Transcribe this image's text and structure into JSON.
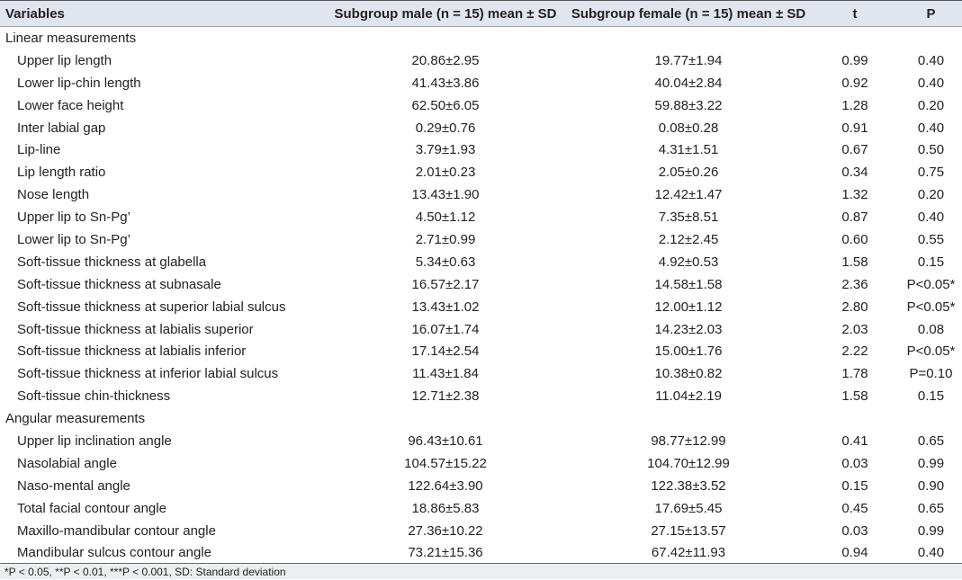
{
  "header": [
    "Variables",
    "Subgroup male (n = 15) mean ± SD",
    "Subgroup female (n = 15) mean ± SD",
    "t",
    "P"
  ],
  "sections": [
    {
      "title": "Linear measurements",
      "rows": [
        [
          "Upper lip length",
          "20.86±2.95",
          "19.77±1.94",
          "0.99",
          "0.40"
        ],
        [
          "Lower lip-chin length",
          "41.43±3.86",
          "40.04±2.84",
          "0.92",
          "0.40"
        ],
        [
          "Lower face height",
          "62.50±6.05",
          "59.88±3.22",
          "1.28",
          "0.20"
        ],
        [
          "Inter labial gap",
          "0.29±0.76",
          "0.08±0.28",
          "0.91",
          "0.40"
        ],
        [
          "Lip-line",
          "3.79±1.93",
          "4.31±1.51",
          "0.67",
          "0.50"
        ],
        [
          "Lip length ratio",
          "2.01±0.23",
          "2.05±0.26",
          "0.34",
          "0.75"
        ],
        [
          "Nose length",
          "13.43±1.90",
          "12.42±1.47",
          "1.32",
          "0.20"
        ],
        [
          "Upper lip to Sn-Pg’",
          "4.50±1.12",
          "7.35±8.51",
          "0.87",
          "0.40"
        ],
        [
          "Lower lip to Sn-Pg’",
          "2.71±0.99",
          "2.12±2.45",
          "0.60",
          "0.55"
        ],
        [
          "Soft-tissue thickness at glabella",
          "5.34±0.63",
          "4.92±0.53",
          "1.58",
          "0.15"
        ],
        [
          "Soft-tissue thickness at subnasale",
          "16.57±2.17",
          "14.58±1.58",
          "2.36",
          "P<0.05*"
        ],
        [
          "Soft-tissue thickness at superior labial sulcus",
          "13.43±1.02",
          "12.00±1.12",
          "2.80",
          "P<0.05*"
        ],
        [
          "Soft-tissue thickness at labialis superior",
          "16.07±1.74",
          "14.23±2.03",
          "2.03",
          "0.08"
        ],
        [
          "Soft-tissue thickness at labialis inferior",
          "17.14±2.54",
          "15.00±1.76",
          "2.22",
          "P<0.05*"
        ],
        [
          "Soft-tissue thickness at inferior labial sulcus",
          "11.43±1.84",
          "10.38±0.82",
          "1.78",
          "P=0.10"
        ],
        [
          "Soft-tissue chin-thickness",
          "12.71±2.38",
          "11.04±2.19",
          "1.58",
          "0.15"
        ]
      ]
    },
    {
      "title": "Angular measurements",
      "rows": [
        [
          "Upper lip inclination angle",
          "96.43±10.61",
          "98.77±12.99",
          "0.41",
          "0.65"
        ],
        [
          "Nasolabial angle",
          "104.57±15.22",
          "104.70±12.99",
          "0.03",
          "0.99"
        ],
        [
          "Naso-mental angle",
          "122.64±3.90",
          "122.38±3.52",
          "0.15",
          "0.90"
        ],
        [
          "Total facial contour angle",
          "18.86±5.83",
          "17.69±5.45",
          "0.45",
          "0.65"
        ],
        [
          "Maxillo-mandibular contour angle",
          "27.36±10.22",
          "27.15±13.57",
          "0.03",
          "0.99"
        ],
        [
          "Mandibular sulcus contour angle",
          "73.21±15.36",
          "67.42±11.93",
          "0.94",
          "0.40"
        ]
      ]
    }
  ],
  "footnote": "*P < 0.05, **P < 0.01, ***P < 0.001, SD: Standard deviation"
}
